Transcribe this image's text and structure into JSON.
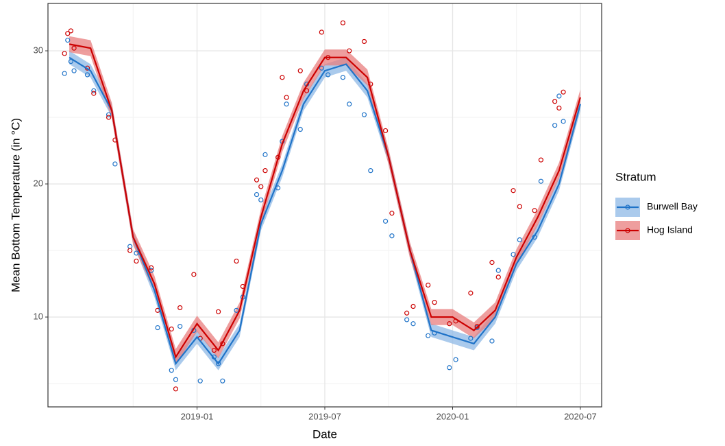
{
  "chart_data": {
    "type": "smooth-scatter",
    "x_label": "Date",
    "y_label": "Mean Bottom Temperature (in °C)",
    "legend_title": "Stratum",
    "legend_position": "right",
    "grid": true,
    "xlim": [
      "2018-06",
      "2020-08"
    ],
    "xticks": [
      "2019-01",
      "2019-07",
      "2020-01",
      "2020-07"
    ],
    "xminor_ticks": [
      "2018-10",
      "2019-04",
      "2019-10",
      "2020-04"
    ],
    "ylim": [
      3.25,
      33.56
    ],
    "yticks": [
      10,
      20,
      30
    ],
    "yminor_ticks": [
      5,
      15,
      25
    ],
    "x": [
      "2018-07",
      "2018-08",
      "2018-09",
      "2018-10",
      "2018-11",
      "2018-12",
      "2019-01",
      "2019-02",
      "2019-03",
      "2019-04",
      "2019-05",
      "2019-06",
      "2019-07",
      "2019-08",
      "2019-09",
      "2019-10",
      "2019-11",
      "2019-12",
      "2020-01",
      "2020-02",
      "2020-03",
      "2020-04",
      "2020-05",
      "2020-06",
      "2020-07"
    ],
    "series": [
      {
        "name": "Burwell Bay",
        "color": "#1f73c8",
        "fill": "#8db8e6",
        "ribbon_halfwidth": 0.5,
        "values": [
          29.5,
          28.5,
          25.5,
          16,
          12,
          6.5,
          8.5,
          6.5,
          9,
          17,
          21,
          26,
          28.5,
          29,
          27,
          22,
          15,
          9,
          8.5,
          8,
          10,
          14,
          16.5,
          20,
          26
        ],
        "point_x": [
          "2018-07",
          "2018-07",
          "2018-07",
          "2018-07",
          "2018-08",
          "2018-08",
          "2018-09",
          "2018-09",
          "2018-10",
          "2018-10",
          "2018-11",
          "2018-11",
          "2018-12",
          "2018-12",
          "2018-12",
          "2019-01",
          "2019-01",
          "2019-02",
          "2019-02",
          "2019-02",
          "2019-03",
          "2019-03",
          "2019-04",
          "2019-04",
          "2019-04",
          "2019-05",
          "2019-05",
          "2019-05",
          "2019-06",
          "2019-06",
          "2019-07",
          "2019-07",
          "2019-08",
          "2019-08",
          "2019-09",
          "2019-09",
          "2019-10",
          "2019-10",
          "2019-11",
          "2019-11",
          "2019-12",
          "2019-12",
          "2020-01",
          "2020-01",
          "2020-02",
          "2020-02",
          "2020-03",
          "2020-03",
          "2020-04",
          "2020-04",
          "2020-05",
          "2020-05",
          "2020-06",
          "2020-06",
          "2020-06"
        ],
        "point_values": [
          28.3,
          30.8,
          29.2,
          28.5,
          28.2,
          27.0,
          25.2,
          21.5,
          15.3,
          14.8,
          13.5,
          9.2,
          6.0,
          5.3,
          9.3,
          9.0,
          5.2,
          7.0,
          6.5,
          5.2,
          10.5,
          11.5,
          19.2,
          18.8,
          22.2,
          19.7,
          23.2,
          26.0,
          24.1,
          27.5,
          28.7,
          28.2,
          28.0,
          26.0,
          25.2,
          21.0,
          17.2,
          16.1,
          9.8,
          9.5,
          8.6,
          8.8,
          6.2,
          6.8,
          8.4,
          9.2,
          8.2,
          13.5,
          14.7,
          15.8,
          16.0,
          20.2,
          24.4,
          26.6,
          24.7
        ]
      },
      {
        "name": "Hog Island",
        "color": "#cc0000",
        "fill": "#e87d7d",
        "ribbon_halfwidth": 0.6,
        "values": [
          30.5,
          30.2,
          25.5,
          16,
          12.5,
          7,
          9.5,
          7.5,
          10.5,
          17.5,
          23,
          27,
          29.5,
          29.5,
          28,
          22,
          15,
          10,
          10,
          9,
          10.5,
          14.5,
          17.5,
          21,
          26.5
        ],
        "point_x": [
          "2018-07",
          "2018-07",
          "2018-07",
          "2018-07",
          "2018-08",
          "2018-08",
          "2018-09",
          "2018-09",
          "2018-10",
          "2018-10",
          "2018-11",
          "2018-11",
          "2018-12",
          "2018-12",
          "2018-12",
          "2019-01",
          "2019-01",
          "2019-02",
          "2019-02",
          "2019-02",
          "2019-03",
          "2019-03",
          "2019-04",
          "2019-04",
          "2019-04",
          "2019-05",
          "2019-05",
          "2019-05",
          "2019-06",
          "2019-06",
          "2019-07",
          "2019-07",
          "2019-08",
          "2019-08",
          "2019-09",
          "2019-09",
          "2019-10",
          "2019-10",
          "2019-11",
          "2019-11",
          "2019-12",
          "2019-12",
          "2020-01",
          "2020-01",
          "2020-02",
          "2020-02",
          "2020-03",
          "2020-03",
          "2020-04",
          "2020-04",
          "2020-05",
          "2020-05",
          "2020-06",
          "2020-06",
          "2020-06"
        ],
        "point_values": [
          29.8,
          31.3,
          31.5,
          30.2,
          28.7,
          26.8,
          25.0,
          23.3,
          15.0,
          14.2,
          13.7,
          10.5,
          9.1,
          4.6,
          10.7,
          13.2,
          8.4,
          7.5,
          10.4,
          8.0,
          14.2,
          12.3,
          20.3,
          19.8,
          21.0,
          22.0,
          28.0,
          26.5,
          28.5,
          27.0,
          31.4,
          29.5,
          32.1,
          30.0,
          30.7,
          27.5,
          24.0,
          17.8,
          10.3,
          10.8,
          12.4,
          11.1,
          9.5,
          9.7,
          11.8,
          9.3,
          14.1,
          13.0,
          19.5,
          18.3,
          18.0,
          21.8,
          26.2,
          25.7,
          26.9
        ]
      }
    ]
  }
}
